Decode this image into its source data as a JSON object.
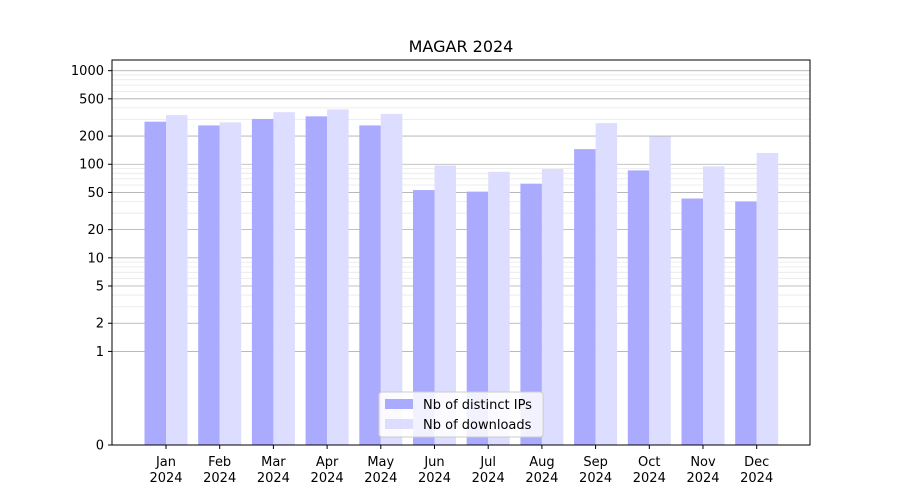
{
  "chart_data": {
    "type": "bar",
    "title": "MAGAR 2024",
    "xlabel": "",
    "ylabel": "",
    "yscale": "symlog",
    "ylim": [
      0,
      1300
    ],
    "yticks": [
      0,
      1,
      2,
      5,
      10,
      20,
      50,
      100,
      200,
      500,
      1000
    ],
    "categories": [
      "Jan\n2024",
      "Feb\n2024",
      "Mar\n2024",
      "Apr\n2024",
      "May\n2024",
      "Jun\n2024",
      "Jul\n2024",
      "Aug\n2024",
      "Sep\n2024",
      "Oct\n2024",
      "Nov\n2024",
      "Dec\n2024"
    ],
    "series": [
      {
        "name": "Nb of distinct IPs",
        "color": "#aaaaff",
        "values": [
          285,
          260,
          305,
          325,
          260,
          53,
          51,
          62,
          145,
          86,
          43,
          40
        ]
      },
      {
        "name": "Nb of downloads",
        "color": "#ddddff",
        "values": [
          335,
          280,
          360,
          385,
          345,
          97,
          83,
          89,
          275,
          198,
          95,
          132
        ]
      }
    ],
    "legend_position": "lower-center",
    "grid": "horizontal"
  }
}
